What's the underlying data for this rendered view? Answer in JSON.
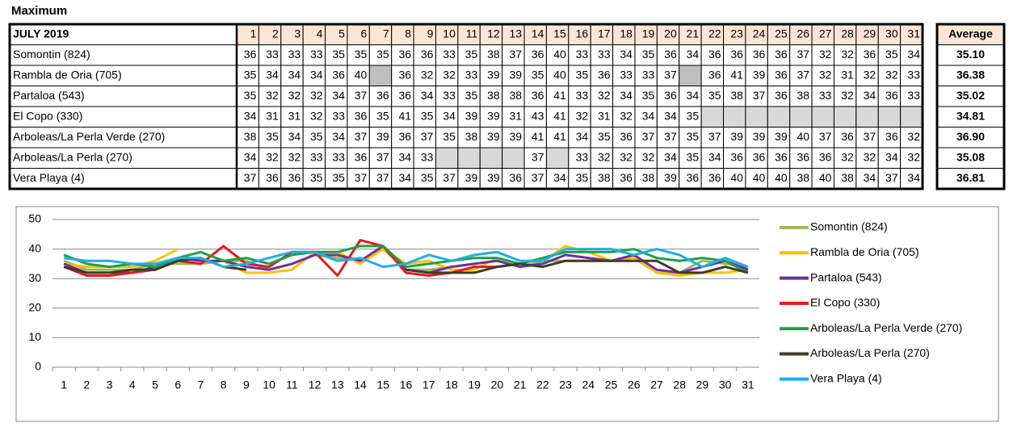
{
  "title": "Maximum",
  "table": {
    "header": "JULY  2019",
    "average_header": "Average",
    "averages": [
      "35.10",
      "36.38",
      "35.02",
      "34.81",
      "36.90",
      "35.08",
      "36.81"
    ]
  },
  "chart_data": {
    "type": "line",
    "categories": [
      "1",
      "2",
      "3",
      "4",
      "5",
      "6",
      "7",
      "8",
      "9",
      "10",
      "11",
      "12",
      "13",
      "14",
      "15",
      "16",
      "17",
      "18",
      "19",
      "20",
      "21",
      "22",
      "23",
      "24",
      "25",
      "26",
      "27",
      "28",
      "29",
      "30",
      "31"
    ],
    "series": [
      {
        "name": "Somontin (824)",
        "color": "#9bbb59",
        "values": [
          36,
          33,
          33,
          33,
          35,
          35,
          35,
          36,
          36,
          33,
          35,
          38,
          37,
          36,
          40,
          33,
          33,
          34,
          35,
          36,
          34,
          36,
          36,
          36,
          36,
          37,
          32,
          32,
          36,
          35,
          34
        ]
      },
      {
        "name": "Rambla de Oria (705)",
        "color": "#ffc000",
        "values": [
          35,
          34,
          34,
          34,
          36,
          40,
          null,
          36,
          32,
          32,
          33,
          39,
          39,
          35,
          40,
          35,
          36,
          33,
          33,
          37,
          null,
          36,
          41,
          39,
          36,
          37,
          32,
          31,
          32,
          32,
          33
        ]
      },
      {
        "name": "Partaloa (543)",
        "color": "#7030a0",
        "values": [
          35,
          32,
          32,
          32,
          34,
          37,
          36,
          36,
          34,
          33,
          35,
          38,
          38,
          36,
          41,
          33,
          32,
          34,
          35,
          36,
          34,
          35,
          38,
          37,
          36,
          38,
          33,
          32,
          34,
          36,
          33
        ]
      },
      {
        "name": "El Copo (330)",
        "color": "#e31a1c",
        "values": [
          34,
          31,
          31,
          32,
          33,
          36,
          35,
          41,
          35,
          34,
          39,
          39,
          31,
          43,
          41,
          32,
          31,
          32,
          34,
          34,
          35,
          null,
          null,
          null,
          null,
          null,
          null,
          null,
          null,
          null,
          null
        ]
      },
      {
        "name": "Arboleas/La Perla Verde (270)",
        "color": "#1fa046",
        "values": [
          38,
          35,
          34,
          35,
          34,
          37,
          39,
          36,
          37,
          35,
          38,
          39,
          39,
          41,
          41,
          34,
          35,
          36,
          37,
          37,
          35,
          37,
          39,
          39,
          39,
          40,
          37,
          36,
          37,
          36,
          32
        ]
      },
      {
        "name": "Arboleas/La Perla (270)",
        "color": "#403c26",
        "values": [
          34,
          32,
          32,
          33,
          33,
          36,
          37,
          34,
          33,
          null,
          null,
          null,
          null,
          37,
          null,
          33,
          32,
          32,
          32,
          34,
          35,
          34,
          36,
          36,
          36,
          36,
          36,
          32,
          32,
          34,
          32
        ]
      },
      {
        "name": "Vera Playa (4)",
        "color": "#1eaee8",
        "values": [
          37,
          36,
          36,
          35,
          35,
          37,
          37,
          34,
          35,
          37,
          39,
          39,
          36,
          37,
          34,
          35,
          38,
          36,
          38,
          39,
          36,
          36,
          40,
          40,
          40,
          38,
          40,
          38,
          34,
          37,
          34
        ]
      }
    ],
    "ylim": [
      0,
      50
    ],
    "yticks": [
      0,
      10,
      20,
      30,
      40,
      50
    ],
    "grid": true,
    "legend": "right"
  }
}
